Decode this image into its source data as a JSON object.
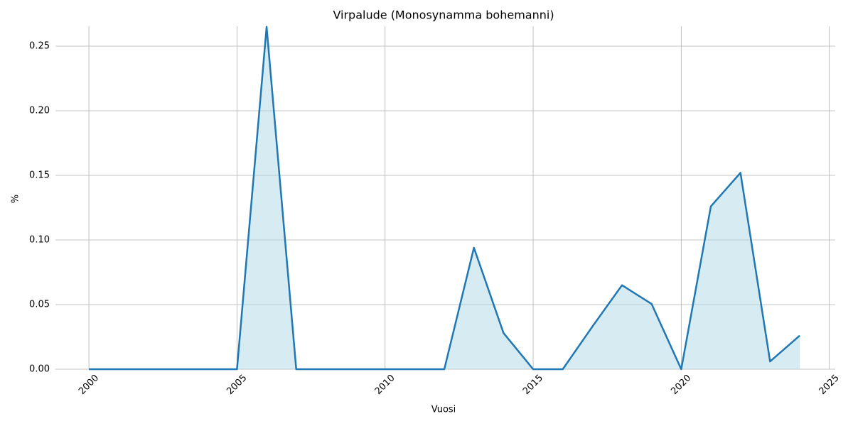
{
  "chart_data": {
    "type": "line",
    "title": "Virpalude (Monosynamma bohemanni)",
    "x_label": "Vuosi",
    "y_label": "%",
    "x": [
      2000,
      2001,
      2002,
      2003,
      2004,
      2005,
      2006,
      2007,
      2008,
      2009,
      2010,
      2011,
      2012,
      2013,
      2014,
      2015,
      2016,
      2017,
      2018,
      2019,
      2020,
      2021,
      2022,
      2023,
      2024
    ],
    "series": [
      {
        "name": "Virpalude",
        "color": "#1f77b4",
        "fill": "#add8e6",
        "values": [
          0,
          0,
          0,
          0,
          0,
          0,
          0.265,
          0,
          0,
          0,
          0,
          0,
          0,
          0.094,
          0.028,
          0,
          0,
          0.033,
          0.065,
          0.0505,
          0,
          0.126,
          0.152,
          0.006,
          0.026
        ]
      }
    ],
    "xlim": [
      1998.87,
      2025.2
    ],
    "xticks": [
      2000,
      2005,
      2010,
      2015,
      2020,
      2025
    ],
    "ylim": [
      0,
      0.2654
    ],
    "yticks": [
      {
        "value": 0,
        "label": "0.00"
      },
      0.05,
      {
        "value": 0.1,
        "label": "0.10"
      },
      0.15,
      {
        "value": 0.2,
        "label": "0.20"
      },
      0.25
    ],
    "grid": true
  }
}
